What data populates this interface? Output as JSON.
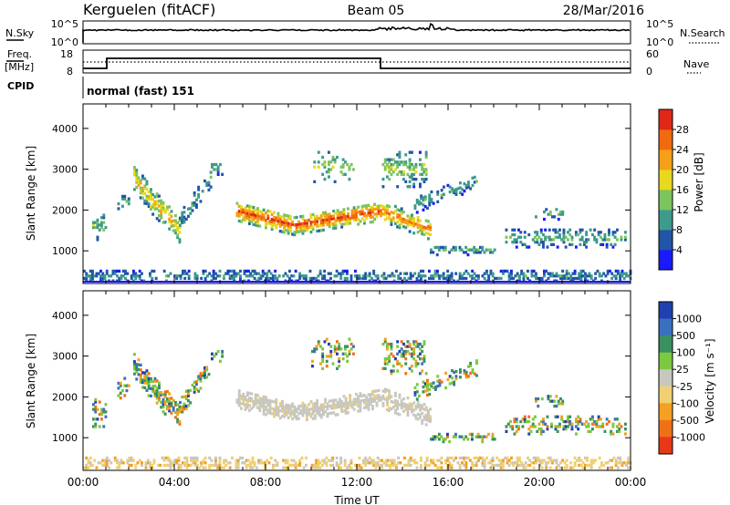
{
  "header": {
    "station": "Kerguelen (fitACF)",
    "beam": "Beam 05",
    "date": "28/Mar/2016"
  },
  "noise_panel": {
    "left_label": "N.Sky",
    "right_label": "N.Search",
    "left_ticks": [
      "10^5",
      "10^0"
    ],
    "right_ticks": [
      "10^5",
      "10^0"
    ]
  },
  "freq_panel": {
    "left_label_top": "Freq.",
    "left_label_bottom": "[MHz]",
    "left_ticks": [
      "18",
      "8"
    ],
    "right_label": "Nave",
    "right_ticks": [
      "60",
      "0"
    ],
    "cpid_label": "CPID",
    "cpid_text": "normal (fast) 151"
  },
  "chart_data": [
    {
      "type": "heatmap",
      "quantity": "power",
      "ylabel": "Slant Range [km]",
      "xlabel": "",
      "yticks": [
        "1000",
        "2000",
        "3000",
        "4000"
      ],
      "ylim": [
        200,
        4600
      ],
      "xlim": [
        0,
        24
      ],
      "colorbar": {
        "label": "Power [dB]",
        "ticks": [
          "4",
          "8",
          "12",
          "16",
          "20",
          "24",
          "28"
        ],
        "colors": [
          "#1a1aff",
          "#2255a8",
          "#3d9a8c",
          "#7bc45e",
          "#e8d820",
          "#f5a018",
          "#f06a10",
          "#e02818"
        ]
      }
    },
    {
      "type": "heatmap",
      "quantity": "velocity",
      "ylabel": "Slant Range [km]",
      "xlabel": "Time UT",
      "yticks": [
        "1000",
        "2000",
        "3000",
        "4000"
      ],
      "ylim": [
        200,
        4600
      ],
      "xlim": [
        0,
        24
      ],
      "xticks": [
        "00:00",
        "04:00",
        "08:00",
        "12:00",
        "16:00",
        "20:00",
        "00:00"
      ],
      "colorbar": {
        "label": "Velocity [m s⁻¹]",
        "ticks": [
          "1000",
          "500",
          "100",
          "25",
          "-25",
          "-100",
          "-500",
          "-1000"
        ],
        "colors": [
          "#2040b0",
          "#3a70c0",
          "#3a9060",
          "#7cc840",
          "#c8c8c0",
          "#f0d070",
          "#f5a020",
          "#f07018",
          "#e83818"
        ]
      }
    }
  ]
}
